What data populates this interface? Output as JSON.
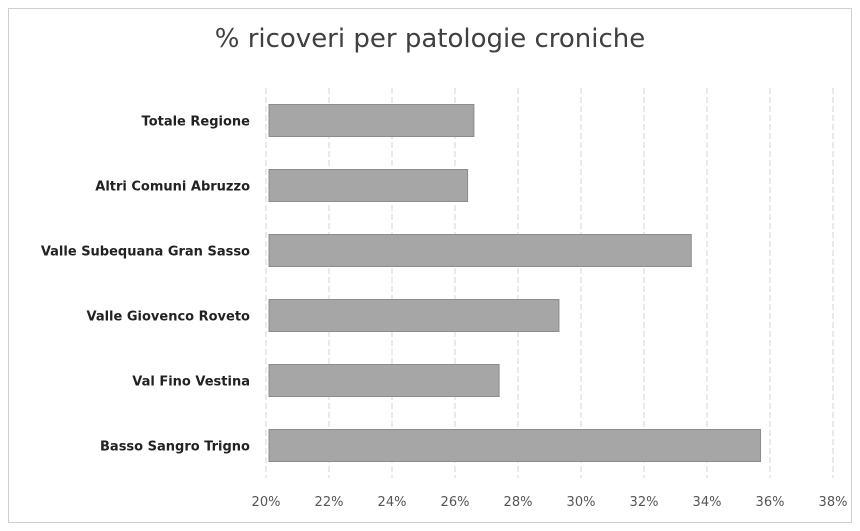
{
  "chart_data": {
    "type": "bar",
    "orientation": "horizontal",
    "title": "% ricoveri per patologie croniche",
    "categories": [
      "Totale Regione",
      "Altri Comuni Abruzzo",
      "Valle Subequana Gran Sasso",
      "Valle Giovenco Roveto",
      "Val Fino Vestina",
      "Basso Sangro Trigno"
    ],
    "values": [
      26.6,
      26.4,
      33.5,
      29.3,
      27.4,
      35.7
    ],
    "xlim": [
      20,
      38
    ],
    "xticks": [
      "20%",
      "22%",
      "24%",
      "26%",
      "28%",
      "30%",
      "32%",
      "34%",
      "36%",
      "38%"
    ],
    "grid": true,
    "bar_color": "#a6a6a6"
  }
}
